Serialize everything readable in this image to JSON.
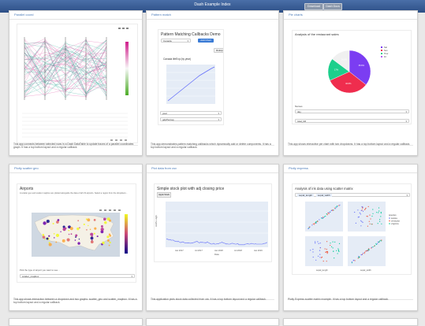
{
  "app": {
    "title": "Dash Example Index",
    "buttons": [
      "Download",
      "Dash Docs"
    ]
  },
  "cards": [
    {
      "title": "Parallel coord",
      "description": "This app connects between selected rows in a Dash DataTable to update traces of a parallel coordinates graph. It has a top bottom layout and a regular callback."
    },
    {
      "title": "Pattern match",
      "description": "This app demonstrates pattern matching callbacks which dynamically add or delete components. It has a top bottom layout and a regular callback.",
      "preview": {
        "heading": "Pattern Matching Callbacks Demo",
        "dropdown_value": "Canada",
        "add_button": "Add Chart",
        "chip": "lifeExp",
        "chart_title": "Canada lifeExp (by year)",
        "field1": "year",
        "field2": "gdpPercap"
      }
    },
    {
      "title": "Pie charts",
      "description": "This app shows interactive pie chart with two dropdowns. It has a top bottom layout and a regular callback.",
      "preview": {
        "chart_title": "Analysis of the restaurant sales",
        "names_label": "Names",
        "names_value": "day",
        "values_value": "total_bill",
        "legend": [
          "Sat",
          "Sun",
          "Thur",
          "Fri"
        ],
        "slice_labels": [
          "35.6%",
          "32.6%",
          "17%",
          "14.8%"
        ]
      }
    },
    {
      "title": "Plotly scatter geo",
      "description": "This app shows interaction between a dropdown and two graphs: scatter_geo and scatter_mapbox. It has a top bottom layout and a regular callback.",
      "preview": {
        "heading": "Airports",
        "intro": "A scatter geo and scatter mapbox are plotted alongside the data of all US airports. Select a region from the dropdown...",
        "dropdown_label": "Pick the type of airport you want to see...",
        "dropdown_value": "scatter_mapbox"
      }
    },
    {
      "title": "Plot data from csv",
      "description": "This application plots stock data collected from csv. It has a top bottom layout and a regular callback.",
      "preview": {
        "heading": "Simple stock plot with adj closing price",
        "chip": "Apple Stock",
        "x_ticks": [
          "Jan 2017",
          "Jul 2017",
          "Jan 2018",
          "Jul 2018",
          "Jan 2019"
        ],
        "ylabel": "AAPL.High",
        "xlabel": "Date"
      }
    },
    {
      "title": "Plotly express",
      "description": "Plotly Express scatter matrix example. It has a top bottom layout and a regular callback.",
      "preview": {
        "heading": "Analysis of iris data using scatter matrix",
        "chips": [
          "sepal_length",
          "sepal_width"
        ],
        "legend_title": "species",
        "legend": [
          "setosa",
          "versicolor",
          "virginica"
        ],
        "axis_labels": [
          "sepal_length",
          "sepal_width"
        ]
      }
    }
  ],
  "colors": {
    "topbar": "#3a5f98",
    "link": "#4a7ab8",
    "pie": [
      "#ef2d4e",
      "#7b3df2",
      "#1ccf8c",
      "#f0f0f0"
    ]
  }
}
